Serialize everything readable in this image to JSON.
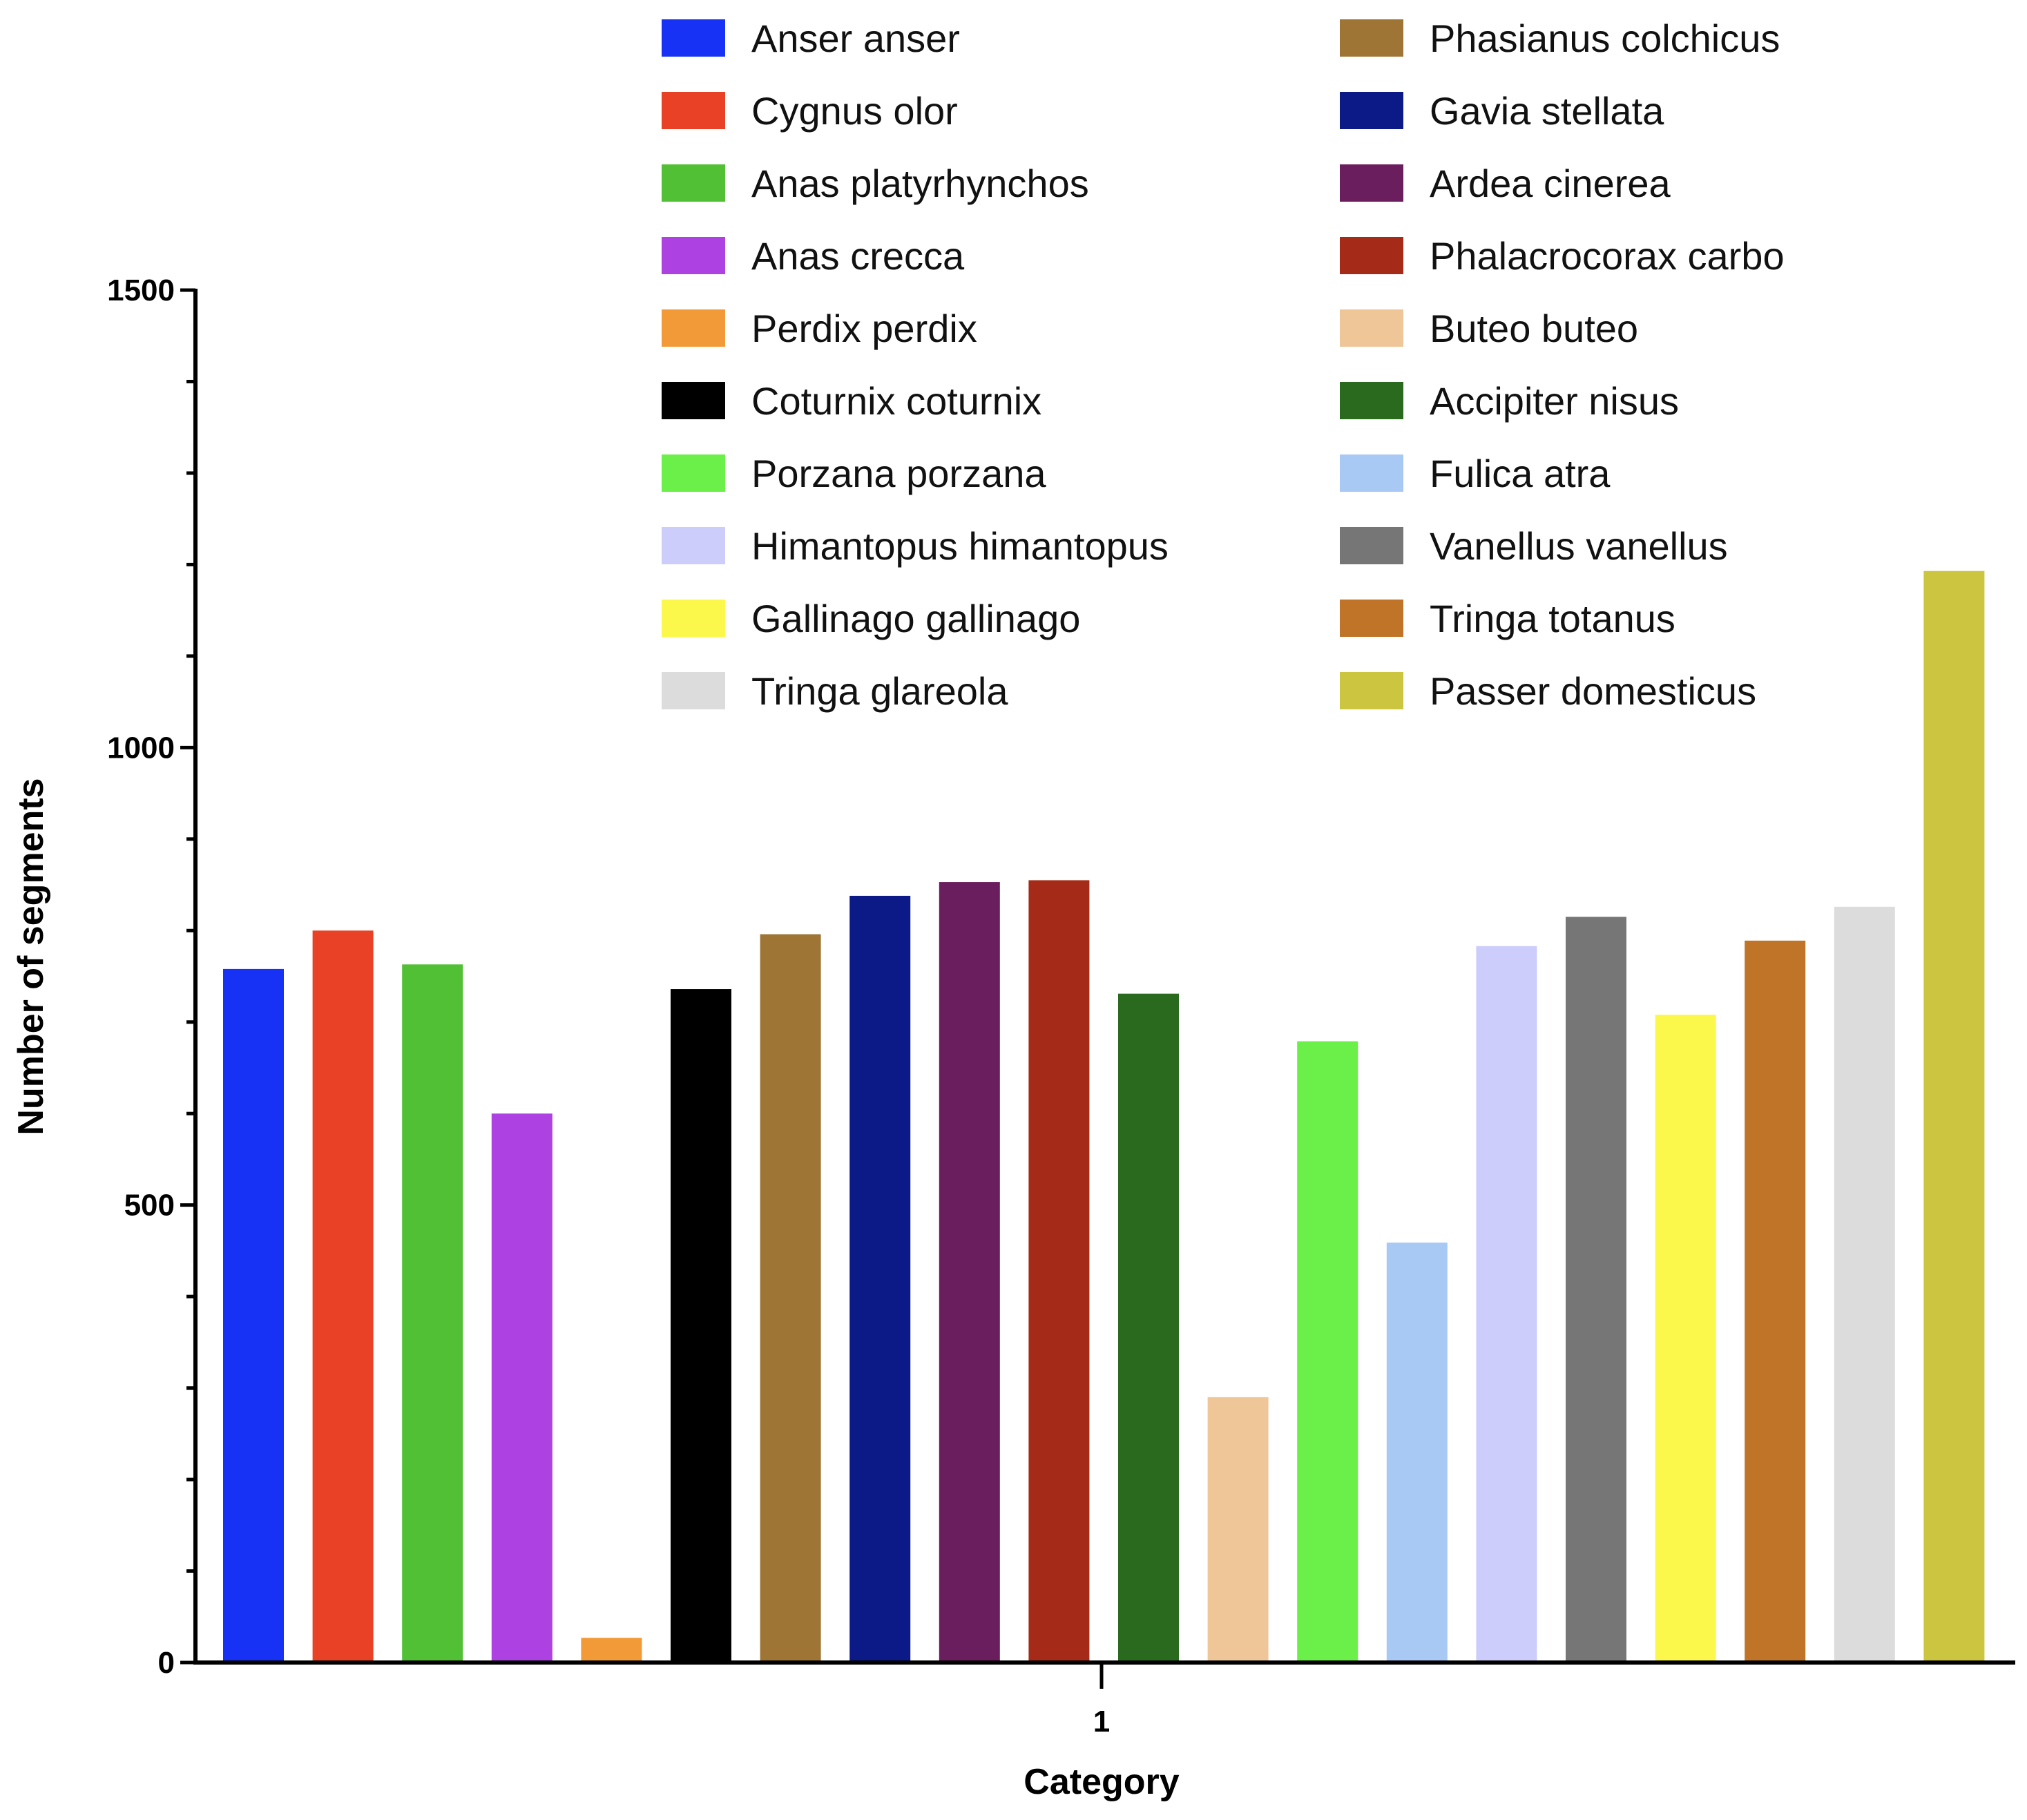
{
  "chart_data": {
    "type": "bar",
    "title": "",
    "xlabel": "Category",
    "ylabel": "Number of segments",
    "categories": [
      "1"
    ],
    "ylim": [
      0,
      1500
    ],
    "y_major_ticks": [
      0,
      500,
      1000,
      1500
    ],
    "y_minor_step": 100,
    "legend_position": "top",
    "series": [
      {
        "name": "Anser anser",
        "color": "#1832f5",
        "values": [
          758
        ]
      },
      {
        "name": "Cygnus olor",
        "color": "#e94125",
        "values": [
          800
        ]
      },
      {
        "name": "Anas platyrhynchos",
        "color": "#52c035",
        "values": [
          763
        ]
      },
      {
        "name": "Anas crecca",
        "color": "#ae41e2",
        "values": [
          600
        ]
      },
      {
        "name": "Perdix perdix",
        "color": "#f29a38",
        "values": [
          27
        ]
      },
      {
        "name": "Coturnix coturnix",
        "color": "#000000",
        "values": [
          736
        ]
      },
      {
        "name": "Phasianus colchicus",
        "color": "#9e7535",
        "values": [
          796
        ]
      },
      {
        "name": "Gavia stellata",
        "color": "#0c1a87",
        "values": [
          838
        ]
      },
      {
        "name": "Ardea cinerea",
        "color": "#6a1e5d",
        "values": [
          853
        ]
      },
      {
        "name": "Phalacrocorax carbo",
        "color": "#a52a17",
        "values": [
          855
        ]
      },
      {
        "name": "Accipiter nisus",
        "color": "#2a6a1f",
        "values": [
          731
        ]
      },
      {
        "name": "Buteo buteo",
        "color": "#eec698",
        "values": [
          290
        ]
      },
      {
        "name": "Porzana porzana",
        "color": "#6af048",
        "values": [
          679
        ]
      },
      {
        "name": "Fulica atra",
        "color": "#a9c9f5",
        "values": [
          459
        ]
      },
      {
        "name": "Himantopus himantopus",
        "color": "#cccdfa",
        "values": [
          783
        ]
      },
      {
        "name": "Vanellus vanellus",
        "color": "#767676",
        "values": [
          815
        ]
      },
      {
        "name": "Gallinago gallinago",
        "color": "#fcf84b",
        "values": [
          708
        ]
      },
      {
        "name": "Tringa totanus",
        "color": "#c07428",
        "values": [
          789
        ]
      },
      {
        "name": "Tringa glareola",
        "color": "#dcdcdc",
        "values": [
          826
        ]
      },
      {
        "name": "Passer domesticus",
        "color": "#cbc53f",
        "values": [
          1193
        ]
      }
    ],
    "legend_columns": [
      [
        "Anser anser",
        "Cygnus olor",
        "Anas platyrhynchos",
        "Anas crecca",
        "Perdix perdix",
        "Coturnix coturnix",
        "Porzana porzana",
        "Himantopus himantopus",
        "Gallinago gallinago",
        "Tringa glareola"
      ],
      [
        "Phasianus colchicus",
        "Gavia stellata",
        "Ardea cinerea",
        "Phalacrocorax carbo",
        "Buteo buteo",
        "Accipiter nisus",
        "Fulica atra",
        "Vanellus vanellus",
        "Tringa totanus",
        "Passer domesticus"
      ]
    ]
  }
}
